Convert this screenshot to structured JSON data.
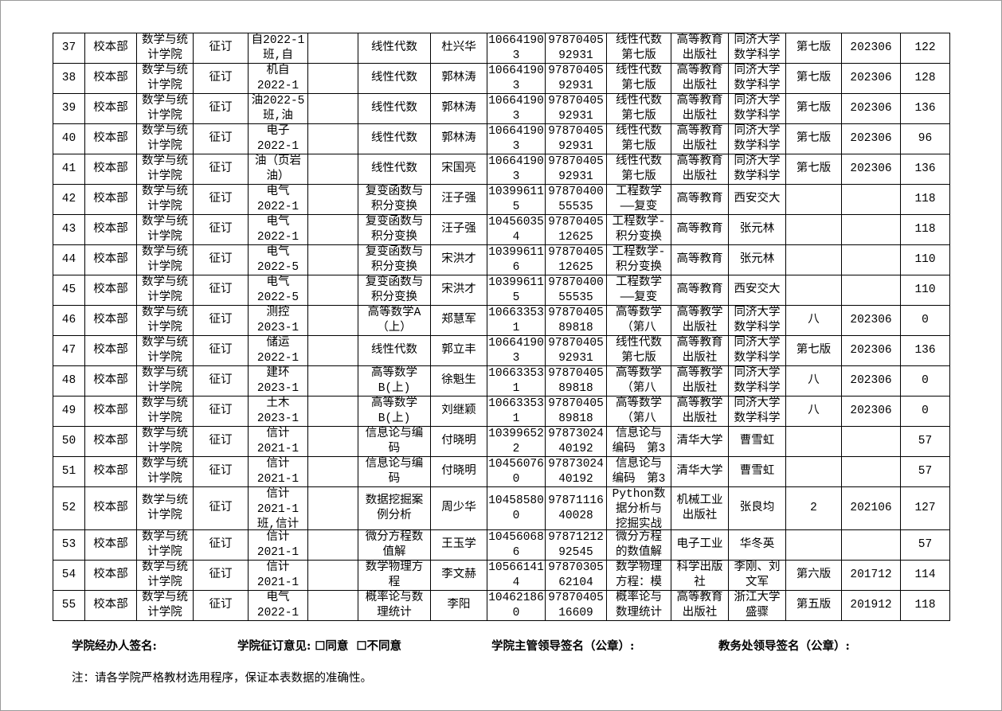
{
  "rows": [
    [
      "37",
      "校本部",
      "数学与统\n计学院",
      "征订",
      "自2022-1\n班,自",
      "",
      "线性代数",
      "杜兴华",
      "10664190\n3",
      "97870405\n92931",
      "线性代数\n第七版",
      "高等教育\n出版社",
      "同济大学\n数学科学",
      "第七版",
      "202306",
      "122"
    ],
    [
      "38",
      "校本部",
      "数学与统\n计学院",
      "征订",
      "机自\n2022-1",
      "",
      "线性代数",
      "郭林涛",
      "10664190\n3",
      "97870405\n92931",
      "线性代数\n第七版",
      "高等教育\n出版社",
      "同济大学\n数学科学",
      "第七版",
      "202306",
      "128"
    ],
    [
      "39",
      "校本部",
      "数学与统\n计学院",
      "征订",
      "油2022-5\n班,油",
      "",
      "线性代数",
      "郭林涛",
      "10664190\n3",
      "97870405\n92931",
      "线性代数\n第七版",
      "高等教育\n出版社",
      "同济大学\n数学科学",
      "第七版",
      "202306",
      "136"
    ],
    [
      "40",
      "校本部",
      "数学与统\n计学院",
      "征订",
      "电子\n2022-1",
      "",
      "线性代数",
      "郭林涛",
      "10664190\n3",
      "97870405\n92931",
      "线性代数\n第七版",
      "高等教育\n出版社",
      "同济大学\n数学科学",
      "第七版",
      "202306",
      "96"
    ],
    [
      "41",
      "校本部",
      "数学与统\n计学院",
      "征订",
      "油（页岩\n油）",
      "",
      "线性代数",
      "宋国亮",
      "10664190\n3",
      "97870405\n92931",
      "线性代数\n第七版",
      "高等教育\n出版社",
      "同济大学\n数学科学",
      "第七版",
      "202306",
      "136"
    ],
    [
      "42",
      "校本部",
      "数学与统\n计学院",
      "征订",
      "电气\n2022-1",
      "",
      "复变函数与\n积分变换",
      "汪子强",
      "10399611\n5",
      "97870400\n55535",
      "工程数学\n——复变",
      "高等教育",
      "西安交大",
      "",
      "",
      "118"
    ],
    [
      "43",
      "校本部",
      "数学与统\n计学院",
      "征订",
      "电气\n2022-1",
      "",
      "复变函数与\n积分变换",
      "汪子强",
      "10456035\n4",
      "97870405\n12625",
      "工程数学-\n积分变换",
      "高等教育",
      "张元林",
      "",
      "",
      "118"
    ],
    [
      "44",
      "校本部",
      "数学与统\n计学院",
      "征订",
      "电气\n2022-5",
      "",
      "复变函数与\n积分变换",
      "宋洪才",
      "10399611\n6",
      "97870405\n12625",
      "工程数学-\n积分变换",
      "高等教育",
      "张元林",
      "",
      "",
      "110"
    ],
    [
      "45",
      "校本部",
      "数学与统\n计学院",
      "征订",
      "电气\n2022-5",
      "",
      "复变函数与\n积分变换",
      "宋洪才",
      "10399611\n5",
      "97870400\n55535",
      "工程数学\n——复变",
      "高等教育",
      "西安交大",
      "",
      "",
      "110"
    ],
    [
      "46",
      "校本部",
      "数学与统\n计学院",
      "征订",
      "测控\n2023-1",
      "",
      "高等数学A\n（上）",
      "郑慧军",
      "10663353\n1",
      "97870405\n89818",
      "高等数学\n（第八",
      "高等教学\n出版社",
      "同济大学\n数学科学",
      "八",
      "202306",
      "0"
    ],
    [
      "47",
      "校本部",
      "数学与统\n计学院",
      "征订",
      "储运\n2022-1",
      "",
      "线性代数",
      "郭立丰",
      "10664190\n3",
      "97870405\n92931",
      "线性代数\n第七版",
      "高等教育\n出版社",
      "同济大学\n数学科学",
      "第七版",
      "202306",
      "136"
    ],
    [
      "48",
      "校本部",
      "数学与统\n计学院",
      "征订",
      "建环\n2023-1",
      "",
      "高等数学\nB(上)",
      "徐魁生",
      "10663353\n1",
      "97870405\n89818",
      "高等数学\n（第八",
      "高等教学\n出版社",
      "同济大学\n数学科学",
      "八",
      "202306",
      "0"
    ],
    [
      "49",
      "校本部",
      "数学与统\n计学院",
      "征订",
      "土木\n2023-1",
      "",
      "高等数学\nB(上)",
      "刘继颖",
      "10663353\n1",
      "97870405\n89818",
      "高等数学\n（第八",
      "高等教学\n出版社",
      "同济大学\n数学科学",
      "八",
      "202306",
      "0"
    ],
    [
      "50",
      "校本部",
      "数学与统\n计学院",
      "征订",
      "信计\n2021-1",
      "",
      "信息论与编\n码",
      "付晓明",
      "10399652\n2",
      "97873024\n40192",
      "信息论与\n编码　第3",
      "清华大学",
      "曹雪虹",
      "",
      "",
      "57"
    ],
    [
      "51",
      "校本部",
      "数学与统\n计学院",
      "征订",
      "信计\n2021-1",
      "",
      "信息论与编\n码",
      "付晓明",
      "10456076\n0",
      "97873024\n40192",
      "信息论与\n编码　第3",
      "清华大学",
      "曹雪虹",
      "",
      "",
      "57"
    ],
    [
      "52",
      "校本部",
      "数学与统\n计学院",
      "征订",
      "信计\n2021-1\n班,信计",
      "",
      "数据挖掘案\n例分析",
      "周少华",
      "10458580\n0",
      "97871116\n40028",
      "Python数\n据分析与\n挖掘实战",
      "机械工业\n出版社",
      "张良均",
      "2",
      "202106",
      "127"
    ],
    [
      "53",
      "校本部",
      "数学与统\n计学院",
      "征订",
      "信计\n2021-1",
      "",
      "微分方程数\n值解",
      "王玉学",
      "10456068\n6",
      "97871212\n92545",
      "微分方程\n的数值解",
      "电子工业",
      "华冬英",
      "",
      "",
      "57"
    ],
    [
      "54",
      "校本部",
      "数学与统\n计学院",
      "征订",
      "信计\n2021-1",
      "",
      "数学物理方\n程",
      "李文赫",
      "10566141\n4",
      "97870305\n62104",
      "数学物理\n方程：模",
      "科学出版\n社",
      "李刚、刘\n文军",
      "第六版",
      "201712",
      "114"
    ],
    [
      "55",
      "校本部",
      "数学与统\n计学院",
      "征订",
      "电气\n2022-1",
      "",
      "概率论与数\n理统计",
      "李阳",
      "10462186\n0",
      "97870405\n16609",
      "概率论与\n数理统计",
      "高等教育\n出版社",
      "浙江大学\n盛骤",
      "第五版",
      "201912",
      "118"
    ]
  ],
  "footer": {
    "handler_sign": "学院经办人签名:",
    "opinion": "学院征订意见: ☐同意  ☐不同意",
    "leader_sign": "学院主管领导签名（公章）:",
    "office_sign": "教务处领导签名（公章）:",
    "note": "注：请各学院严格教材选用程序，保证本表数据的准确性。"
  }
}
